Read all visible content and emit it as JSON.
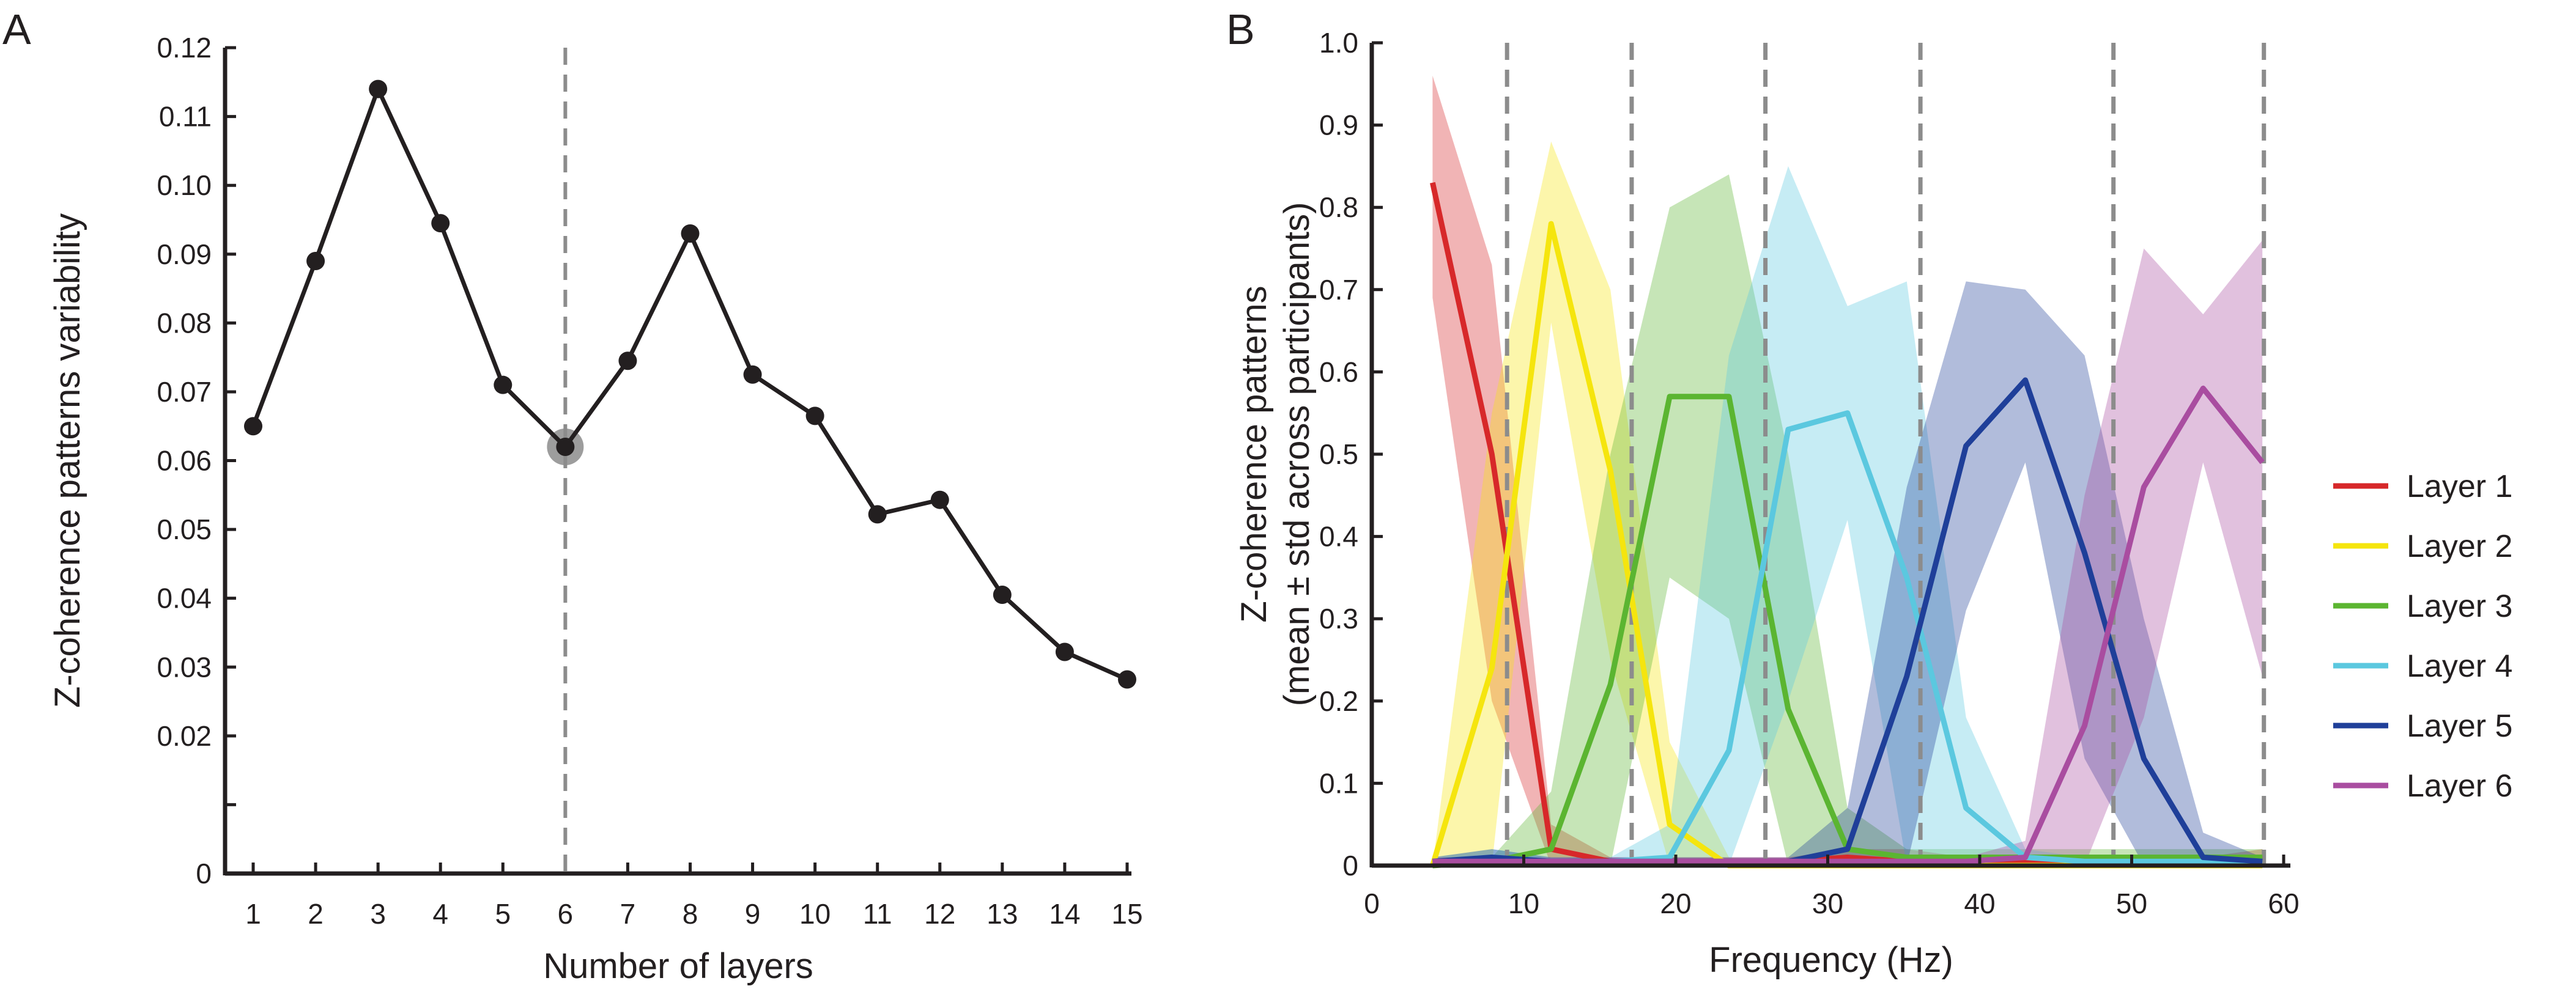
{
  "chart_data": [
    {
      "panel": "A",
      "type": "line",
      "xlabel": "Number of layers",
      "ylabel": "Z-coherence patterns variability",
      "x": [
        1,
        2,
        3,
        4,
        5,
        6,
        7,
        8,
        9,
        10,
        11,
        12,
        13,
        14,
        15
      ],
      "y": [
        0.065,
        0.089,
        0.114,
        0.0945,
        0.071,
        0.062,
        0.0745,
        0.093,
        0.0725,
        0.0665,
        0.0522,
        0.0543,
        0.0405,
        0.0322,
        0.0282
      ],
      "xlim": [
        0.45,
        15.1
      ],
      "ylim": [
        0,
        0.12
      ],
      "xticks": [
        1,
        2,
        3,
        4,
        5,
        6,
        7,
        8,
        9,
        10,
        11,
        12,
        13,
        14,
        15
      ],
      "xtick_labels": [
        "1",
        "2",
        "3",
        "4",
        "5",
        "6",
        "7",
        "8",
        "9",
        "10",
        "11",
        "12",
        "13",
        "14",
        "15"
      ],
      "yticks": [
        0,
        0.01,
        0.02,
        0.03,
        0.04,
        0.05,
        0.06,
        0.07,
        0.08,
        0.09,
        0.1,
        0.11,
        0.12
      ],
      "ytick_labels": [
        "0",
        "",
        "0.02",
        "0.03",
        "0.04",
        "0.05",
        "0.06",
        "0.07",
        "0.08",
        "0.09",
        "0.10",
        "0.11",
        "0.12"
      ],
      "highlight_x": 6,
      "vline_x": 6,
      "colors": {
        "line": "#231f20",
        "highlight": "#8c8c8c",
        "vline": "#8c8c8c"
      }
    },
    {
      "panel": "B",
      "type": "line",
      "xlabel": "Frequency (Hz)",
      "ylabel": [
        "Z-coherence patterns",
        "(mean ± std across participants)"
      ],
      "xlim": [
        0,
        60
      ],
      "ylim": [
        0,
        1.0
      ],
      "xticks": [
        0,
        10,
        20,
        30,
        40,
        50,
        60
      ],
      "xtick_labels": [
        "0",
        "10",
        "20",
        "30",
        "40",
        "50",
        "60"
      ],
      "yticks": [
        0,
        0.1,
        0.2,
        0.3,
        0.4,
        0.5,
        0.6,
        0.7,
        0.8,
        0.9,
        1.0
      ],
      "ytick_labels": [
        "0",
        "0.1",
        "0.2",
        "0.3",
        "0.4",
        "0.5",
        "0.6",
        "0.7",
        "0.8",
        "0.9",
        "1.0"
      ],
      "vlines_x": [
        8.9,
        17.1,
        25.9,
        36.1,
        48.8,
        58.7
      ],
      "legend_position": "right",
      "x": [
        4,
        7.9,
        11.8,
        15.7,
        19.6,
        23.5,
        27.4,
        31.3,
        35.2,
        39.1,
        43,
        46.9,
        50.8,
        54.7,
        58.6
      ],
      "series": [
        {
          "name": "Layer 1",
          "color": "#d7282a",
          "mean": [
            0.83,
            0.5,
            0.02,
            0.005,
            0.005,
            0.005,
            0.005,
            0.01,
            0.005,
            0.005,
            0.005,
            0.005,
            0.005,
            0.005,
            0.01
          ],
          "upper": [
            0.96,
            0.73,
            0.05,
            0.01,
            0.01,
            0.01,
            0.01,
            0.02,
            0.02,
            0.01,
            0.01,
            0.01,
            0.01,
            0.01,
            0.02
          ],
          "lower": [
            0.69,
            0.2,
            0,
            0,
            0,
            0,
            0,
            0,
            0,
            0,
            0,
            0,
            0,
            0,
            0
          ]
        },
        {
          "name": "Layer 2",
          "color": "#f5e50e",
          "mean": [
            0,
            0.24,
            0.78,
            0.48,
            0.05,
            0,
            0,
            0,
            0,
            0,
            0,
            0,
            0,
            0,
            0
          ],
          "upper": [
            0,
            0.55,
            0.88,
            0.7,
            0.15,
            0.01,
            0,
            0,
            0,
            0,
            0,
            0,
            0,
            0,
            0
          ],
          "lower": [
            0,
            0,
            0.66,
            0.25,
            0,
            0,
            0,
            0,
            0,
            0,
            0,
            0,
            0,
            0,
            0
          ]
        },
        {
          "name": "Layer 3",
          "color": "#5bb531",
          "mean": [
            0,
            0.005,
            0.02,
            0.22,
            0.57,
            0.57,
            0.19,
            0.02,
            0.01,
            0.01,
            0.01,
            0.01,
            0.01,
            0.01,
            0.01
          ],
          "upper": [
            0,
            0.01,
            0.09,
            0.5,
            0.8,
            0.84,
            0.5,
            0.07,
            0.02,
            0.02,
            0.02,
            0.02,
            0.02,
            0.02,
            0.02
          ],
          "lower": [
            0,
            0,
            0,
            0,
            0.35,
            0.3,
            0,
            0,
            0,
            0,
            0,
            0,
            0,
            0,
            0
          ]
        },
        {
          "name": "Layer 4",
          "color": "#5bc8df",
          "mean": [
            0.005,
            0.01,
            0.005,
            0.005,
            0.01,
            0.14,
            0.53,
            0.55,
            0.35,
            0.07,
            0.01,
            0.005,
            0.005,
            0.005,
            0.005
          ],
          "upper": [
            0.01,
            0.02,
            0.01,
            0.01,
            0.05,
            0.62,
            0.85,
            0.68,
            0.71,
            0.18,
            0.02,
            0.01,
            0.01,
            0.01,
            0.01
          ],
          "lower": [
            0,
            0,
            0,
            0,
            0,
            0,
            0.2,
            0.42,
            0,
            0,
            0,
            0,
            0,
            0,
            0
          ]
        },
        {
          "name": "Layer 5",
          "color": "#1f3f99",
          "mean": [
            0.005,
            0.01,
            0.005,
            0.005,
            0.005,
            0.005,
            0.005,
            0.02,
            0.23,
            0.51,
            0.59,
            0.38,
            0.13,
            0.01,
            0.005
          ],
          "upper": [
            0.01,
            0.02,
            0.01,
            0.01,
            0.01,
            0.01,
            0.01,
            0.07,
            0.46,
            0.71,
            0.7,
            0.62,
            0.3,
            0.04,
            0.01
          ],
          "lower": [
            0,
            0,
            0,
            0,
            0,
            0,
            0,
            0,
            0,
            0.31,
            0.49,
            0.13,
            0,
            0,
            0
          ]
        },
        {
          "name": "Layer 6",
          "color": "#a94da0",
          "mean": [
            0.005,
            0.005,
            0.005,
            0.005,
            0.005,
            0.005,
            0.005,
            0.005,
            0.005,
            0.005,
            0.01,
            0.17,
            0.46,
            0.58,
            0.49
          ],
          "upper": [
            0.01,
            0.01,
            0.01,
            0.01,
            0.01,
            0.01,
            0.01,
            0.01,
            0.01,
            0.01,
            0.03,
            0.45,
            0.75,
            0.67,
            0.76
          ],
          "lower": [
            0,
            0,
            0,
            0,
            0,
            0,
            0,
            0,
            0,
            0,
            0,
            0,
            0.18,
            0.49,
            0.23
          ]
        }
      ]
    }
  ],
  "panels": {
    "a_label": "A",
    "b_label": "B"
  }
}
